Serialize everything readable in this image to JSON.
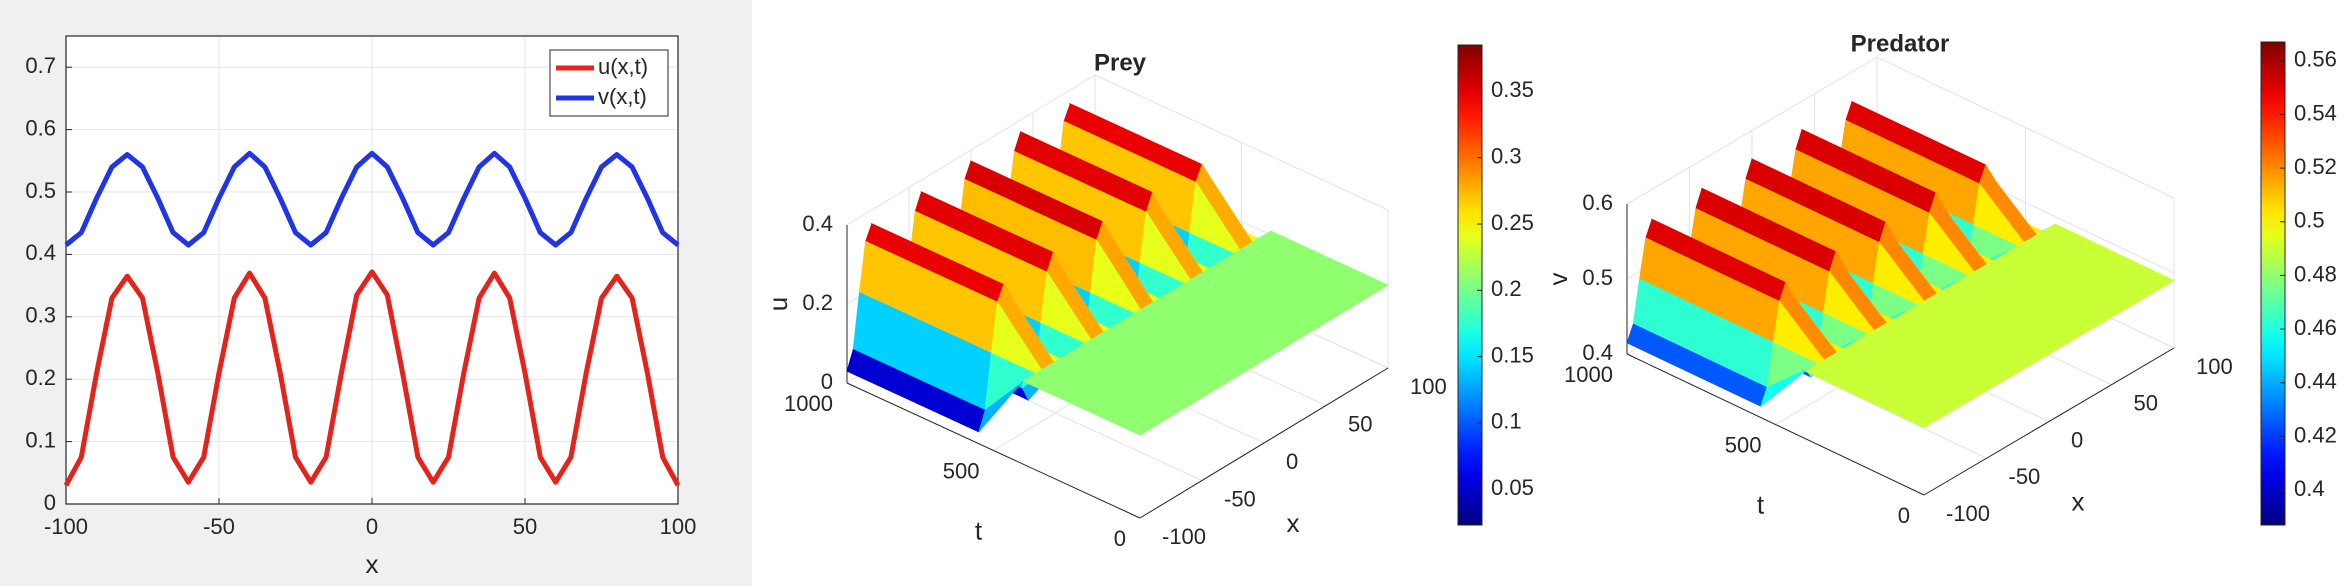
{
  "chart_data": [
    {
      "type": "line",
      "xlabel": "x",
      "x": [
        -100,
        -95,
        -90,
        -85,
        -80,
        -75,
        -70,
        -65,
        -60,
        -55,
        -50,
        -45,
        -40,
        -35,
        -30,
        -25,
        -20,
        -15,
        -10,
        -5,
        0,
        5,
        10,
        15,
        20,
        25,
        30,
        35,
        40,
        45,
        50,
        55,
        60,
        65,
        70,
        75,
        80,
        85,
        90,
        95,
        100
      ],
      "series": [
        {
          "name": "u(x,t)",
          "color": "#e3231c",
          "values": [
            0.03,
            0.075,
            0.21,
            0.33,
            0.365,
            0.33,
            0.21,
            0.075,
            0.035,
            0.075,
            0.21,
            0.33,
            0.37,
            0.33,
            0.21,
            0.075,
            0.035,
            0.075,
            0.21,
            0.335,
            0.372,
            0.335,
            0.21,
            0.075,
            0.035,
            0.075,
            0.21,
            0.33,
            0.37,
            0.33,
            0.21,
            0.075,
            0.035,
            0.075,
            0.21,
            0.33,
            0.365,
            0.33,
            0.21,
            0.075,
            0.03
          ]
        },
        {
          "name": "v(x,t)",
          "color": "#1f35e6",
          "values": [
            0.415,
            0.435,
            0.49,
            0.54,
            0.56,
            0.54,
            0.49,
            0.435,
            0.415,
            0.435,
            0.49,
            0.54,
            0.562,
            0.54,
            0.49,
            0.435,
            0.415,
            0.435,
            0.49,
            0.54,
            0.562,
            0.54,
            0.49,
            0.435,
            0.415,
            0.435,
            0.49,
            0.54,
            0.562,
            0.54,
            0.49,
            0.435,
            0.415,
            0.435,
            0.49,
            0.54,
            0.56,
            0.54,
            0.49,
            0.435,
            0.415
          ]
        }
      ],
      "xlim": [
        -100,
        100
      ],
      "xticks": [
        -100,
        -50,
        0,
        50,
        100
      ],
      "ylim": [
        0,
        0.75
      ],
      "yticks": [
        0,
        0.1,
        0.2,
        0.3,
        0.4,
        0.5,
        0.6,
        0.7
      ],
      "grid": true,
      "legend": "northeast"
    },
    {
      "type": "surface",
      "title": "Prey",
      "xlabel": "x",
      "ylabel": "t",
      "zlabel": "u",
      "colormap": "jet",
      "x": [
        -100,
        -95,
        -90,
        -85,
        -80,
        -75,
        -70,
        -65,
        -60,
        -55,
        -50,
        -45,
        -40,
        -35,
        -30,
        -25,
        -20,
        -15,
        -10,
        -5,
        0,
        5,
        10,
        15,
        20,
        25,
        30,
        35,
        40,
        45,
        50,
        55,
        60,
        65,
        70,
        75,
        80,
        85,
        90,
        95,
        100
      ],
      "t": [
        0,
        400,
        550,
        1000
      ],
      "z": [
        [
          0.21,
          0.21,
          0.21,
          0.21,
          0.21,
          0.21,
          0.21,
          0.21,
          0.21,
          0.21,
          0.21,
          0.21,
          0.21,
          0.21,
          0.21,
          0.21,
          0.21,
          0.21,
          0.21,
          0.21,
          0.21,
          0.21,
          0.21,
          0.21,
          0.21,
          0.21,
          0.21,
          0.21,
          0.21,
          0.21,
          0.21,
          0.21,
          0.21,
          0.21,
          0.21,
          0.21,
          0.21,
          0.21,
          0.21,
          0.21,
          0.21
        ],
        [
          0.21,
          0.21,
          0.21,
          0.21,
          0.21,
          0.21,
          0.21,
          0.21,
          0.21,
          0.21,
          0.21,
          0.21,
          0.21,
          0.21,
          0.21,
          0.21,
          0.21,
          0.21,
          0.21,
          0.21,
          0.21,
          0.21,
          0.21,
          0.21,
          0.21,
          0.21,
          0.21,
          0.21,
          0.21,
          0.21,
          0.21,
          0.21,
          0.21,
          0.21,
          0.21,
          0.21,
          0.21,
          0.21,
          0.21,
          0.21,
          0.21
        ],
        [
          0.03,
          0.075,
          0.21,
          0.33,
          0.365,
          0.33,
          0.21,
          0.075,
          0.035,
          0.075,
          0.21,
          0.33,
          0.37,
          0.33,
          0.21,
          0.075,
          0.035,
          0.075,
          0.21,
          0.335,
          0.372,
          0.335,
          0.21,
          0.075,
          0.035,
          0.075,
          0.21,
          0.33,
          0.37,
          0.33,
          0.21,
          0.075,
          0.035,
          0.075,
          0.21,
          0.33,
          0.365,
          0.33,
          0.21,
          0.075,
          0.03
        ],
        [
          0.03,
          0.075,
          0.21,
          0.33,
          0.365,
          0.33,
          0.21,
          0.075,
          0.035,
          0.075,
          0.21,
          0.33,
          0.37,
          0.33,
          0.21,
          0.075,
          0.035,
          0.075,
          0.21,
          0.335,
          0.372,
          0.335,
          0.21,
          0.075,
          0.035,
          0.075,
          0.21,
          0.33,
          0.37,
          0.33,
          0.21,
          0.075,
          0.035,
          0.075,
          0.21,
          0.33,
          0.365,
          0.33,
          0.21,
          0.075,
          0.03
        ]
      ],
      "xlim": [
        -100,
        100
      ],
      "xticks": [
        -100,
        -50,
        0,
        50,
        100
      ],
      "ylim": [
        0,
        1000
      ],
      "yticks": [
        0,
        500,
        1000
      ],
      "zlim": [
        0,
        0.4
      ],
      "zticks": [
        0,
        0.2,
        0.4
      ],
      "clim": [
        0.023,
        0.385
      ],
      "cticks": [
        0.05,
        0.1,
        0.15,
        0.2,
        0.25,
        0.3,
        0.35
      ]
    },
    {
      "type": "surface",
      "title": "Predator",
      "xlabel": "x",
      "ylabel": "t",
      "zlabel": "v",
      "colormap": "jet",
      "x": [
        -100,
        -95,
        -90,
        -85,
        -80,
        -75,
        -70,
        -65,
        -60,
        -55,
        -50,
        -45,
        -40,
        -35,
        -30,
        -25,
        -20,
        -15,
        -10,
        -5,
        0,
        5,
        10,
        15,
        20,
        25,
        30,
        35,
        40,
        45,
        50,
        55,
        60,
        65,
        70,
        75,
        80,
        85,
        90,
        95,
        100
      ],
      "t": [
        0,
        400,
        550,
        1000
      ],
      "z": [
        [
          0.49,
          0.49,
          0.49,
          0.49,
          0.49,
          0.49,
          0.49,
          0.49,
          0.49,
          0.49,
          0.49,
          0.49,
          0.49,
          0.49,
          0.49,
          0.49,
          0.49,
          0.49,
          0.49,
          0.49,
          0.49,
          0.49,
          0.49,
          0.49,
          0.49,
          0.49,
          0.49,
          0.49,
          0.49,
          0.49,
          0.49,
          0.49,
          0.49,
          0.49,
          0.49,
          0.49,
          0.49,
          0.49,
          0.49,
          0.49,
          0.49
        ],
        [
          0.49,
          0.49,
          0.49,
          0.49,
          0.49,
          0.49,
          0.49,
          0.49,
          0.49,
          0.49,
          0.49,
          0.49,
          0.49,
          0.49,
          0.49,
          0.49,
          0.49,
          0.49,
          0.49,
          0.49,
          0.49,
          0.49,
          0.49,
          0.49,
          0.49,
          0.49,
          0.49,
          0.49,
          0.49,
          0.49,
          0.49,
          0.49,
          0.49,
          0.49,
          0.49,
          0.49,
          0.49,
          0.49,
          0.49,
          0.49,
          0.49
        ],
        [
          0.415,
          0.435,
          0.49,
          0.54,
          0.56,
          0.54,
          0.49,
          0.435,
          0.415,
          0.435,
          0.49,
          0.54,
          0.562,
          0.54,
          0.49,
          0.435,
          0.415,
          0.435,
          0.49,
          0.54,
          0.562,
          0.54,
          0.49,
          0.435,
          0.415,
          0.435,
          0.49,
          0.54,
          0.562,
          0.54,
          0.49,
          0.435,
          0.415,
          0.435,
          0.49,
          0.54,
          0.56,
          0.54,
          0.49,
          0.435,
          0.415
        ],
        [
          0.415,
          0.435,
          0.49,
          0.54,
          0.56,
          0.54,
          0.49,
          0.435,
          0.415,
          0.435,
          0.49,
          0.54,
          0.562,
          0.54,
          0.49,
          0.435,
          0.415,
          0.435,
          0.49,
          0.54,
          0.562,
          0.54,
          0.49,
          0.435,
          0.415,
          0.435,
          0.49,
          0.54,
          0.562,
          0.54,
          0.49,
          0.435,
          0.415,
          0.435,
          0.49,
          0.54,
          0.56,
          0.54,
          0.49,
          0.435,
          0.415
        ]
      ],
      "xlim": [
        -100,
        100
      ],
      "xticks": [
        -100,
        -50,
        0,
        50,
        100
      ],
      "ylim": [
        0,
        1000
      ],
      "yticks": [
        0,
        500,
        1000
      ],
      "zlim": [
        0.4,
        0.6
      ],
      "zticks": [
        0.4,
        0.5,
        0.6
      ],
      "clim": [
        0.387,
        0.567
      ],
      "cticks": [
        0.4,
        0.42,
        0.44,
        0.46,
        0.48,
        0.5,
        0.52,
        0.54,
        0.56
      ]
    }
  ]
}
